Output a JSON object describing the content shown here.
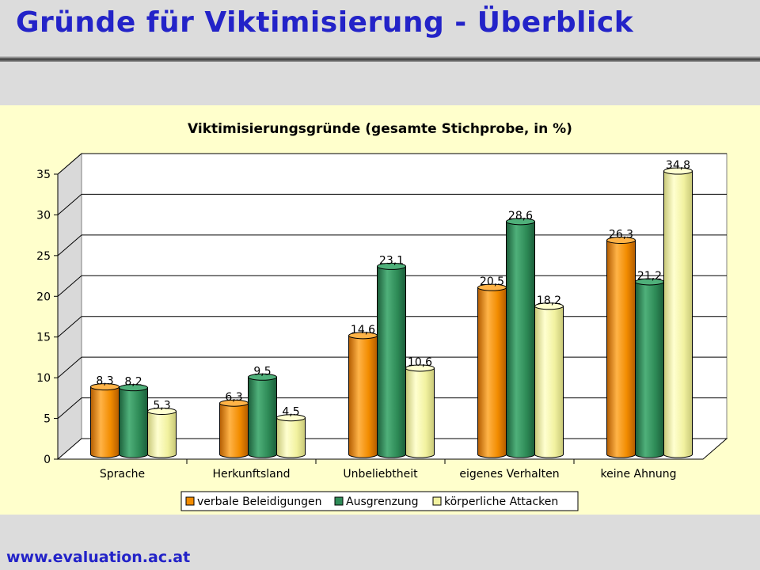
{
  "slide": {
    "title": "Gründe für Viktimisierung - Überblick",
    "footer": "www.evaluation.ac.at"
  },
  "colors": {
    "title": "#2323c8",
    "panel_background": "#ffffcc",
    "plot_background": "#ffffff"
  },
  "chart_data": {
    "type": "bar",
    "title": "Viktimisierungsgründe (gesamte Stichprobe, in %)",
    "xlabel": "",
    "ylabel": "",
    "categories": [
      "Sprache",
      "Herkunftsland",
      "Unbeliebtheit",
      "eigenes Verhalten",
      "keine Ahnung"
    ],
    "series": [
      {
        "name": "verbale Beleidigungen",
        "values": [
          8.3,
          6.3,
          14.6,
          20.5,
          26.3
        ],
        "labels": [
          "8,3",
          "6,3",
          "14,6",
          "20,5",
          "26,3"
        ],
        "color": "#f28c00",
        "color_light": "#ffb347",
        "color_dark": "#b35c00"
      },
      {
        "name": "Ausgrenzung",
        "values": [
          8.2,
          9.5,
          23.1,
          28.6,
          21.2
        ],
        "labels": [
          "8,2",
          "9,5",
          "23,1",
          "28,6",
          "21,2"
        ],
        "color": "#2e8b57",
        "color_light": "#4fb07a",
        "color_dark": "#1b5e3a"
      },
      {
        "name": "körperliche Attacken",
        "values": [
          5.3,
          4.5,
          10.6,
          18.2,
          34.8
        ],
        "labels": [
          "5,3",
          "4,5",
          "10,6",
          "18,2",
          "34,8"
        ],
        "color": "#f2f2a0",
        "color_light": "#ffffd0",
        "color_dark": "#c8c878"
      }
    ],
    "yticks": [
      "0",
      "5",
      "10",
      "15",
      "20",
      "25",
      "30",
      "35"
    ],
    "ylim": [
      0,
      35
    ],
    "grid": true,
    "legend_position": "bottom"
  }
}
